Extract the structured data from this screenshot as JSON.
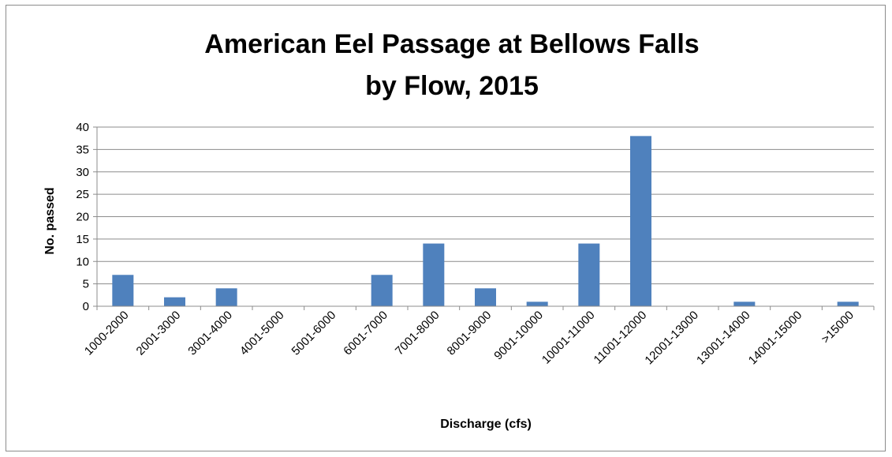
{
  "chart_data": {
    "type": "bar",
    "title": [
      "American Eel Passage at Bellows Falls",
      "by Flow, 2015"
    ],
    "xlabel": "Discharge (cfs)",
    "ylabel": "No. passed",
    "ylim": [
      0,
      40
    ],
    "yticks": [
      0,
      5,
      10,
      15,
      20,
      25,
      30,
      35,
      40
    ],
    "grid": true,
    "legend": "none",
    "bar_color": "#4f81bd",
    "categories": [
      "1000-2000",
      "2001-3000",
      "3001-4000",
      "4001-5000",
      "5001-6000",
      "6001-7000",
      "7001-8000",
      "8001-9000",
      "9001-10000",
      "10001-11000",
      "11001-12000",
      "12001-13000",
      "13001-14000",
      "14001-15000",
      ">15000"
    ],
    "values": [
      7,
      2,
      4,
      0,
      0,
      7,
      14,
      4,
      1,
      14,
      38,
      0,
      1,
      0,
      1
    ]
  }
}
